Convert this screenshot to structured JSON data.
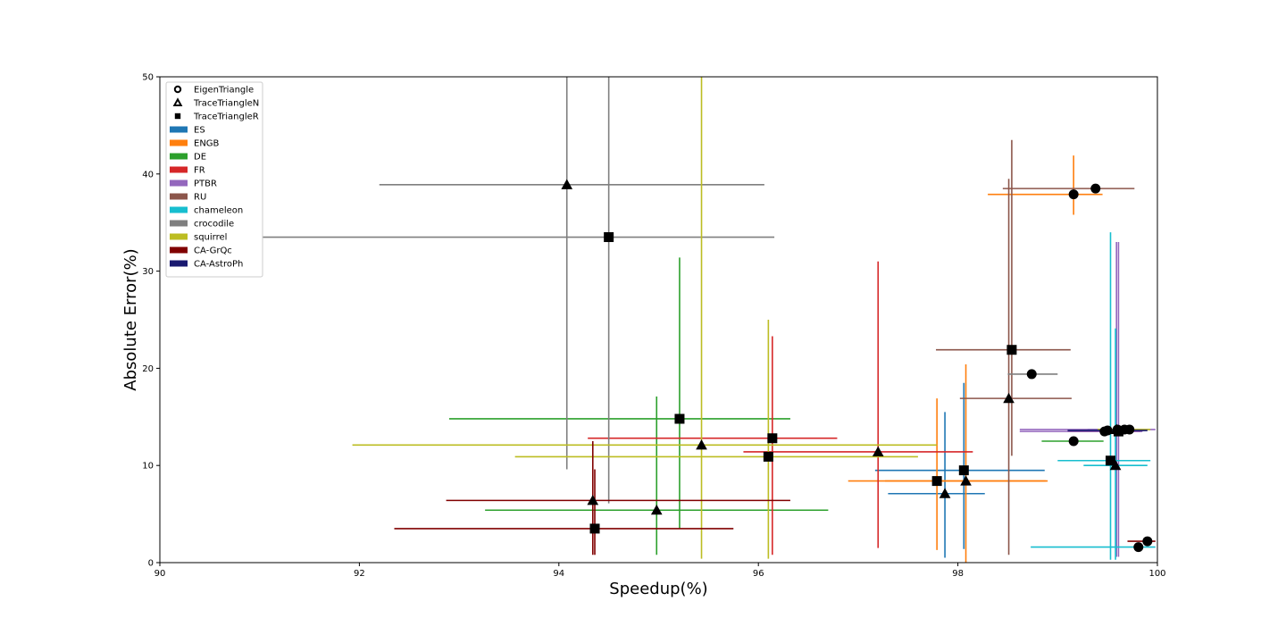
{
  "chart_data": {
    "type": "scatter",
    "xlabel": "Speedup(%)",
    "ylabel": "Absolute Error(%)",
    "xlim": [
      90,
      100
    ],
    "ylim": [
      0,
      50
    ],
    "xticks": [
      90,
      92,
      94,
      96,
      98,
      100
    ],
    "yticks": [
      0,
      10,
      20,
      30,
      40,
      50
    ],
    "grid": false,
    "legend_position": "top-left",
    "marker_legend": [
      {
        "label": "EigenTriangle",
        "marker": "circle"
      },
      {
        "label": "TraceTriangleN",
        "marker": "triangle"
      },
      {
        "label": "TraceTriangleR",
        "marker": "square"
      }
    ],
    "datasets": [
      {
        "name": "ES",
        "color": "#1f77b4"
      },
      {
        "name": "ENGB",
        "color": "#ff7f0e"
      },
      {
        "name": "DE",
        "color": "#2ca02c"
      },
      {
        "name": "FR",
        "color": "#d62728"
      },
      {
        "name": "PTBR",
        "color": "#9467bd"
      },
      {
        "name": "RU",
        "color": "#8c564b"
      },
      {
        "name": "chameleon",
        "color": "#17becf"
      },
      {
        "name": "crocodile",
        "color": "#7f7f7f"
      },
      {
        "name": "squirrel",
        "color": "#bcbd22"
      },
      {
        "name": "CA-GrQc",
        "color": "#800000"
      },
      {
        "name": "CA-AstroPh",
        "color": "#191970"
      }
    ],
    "points": [
      {
        "dataset": "ES",
        "method": "EigenTriangle",
        "x": 99.6,
        "y": 13.7,
        "xerr": [
          99.3,
          99.85
        ],
        "yerr": [
          13.4,
          14.0
        ]
      },
      {
        "dataset": "ES",
        "method": "TraceTriangleN",
        "x": 97.87,
        "y": 7.1,
        "xerr": [
          97.3,
          98.27
        ],
        "yerr": [
          0.5,
          15.5
        ]
      },
      {
        "dataset": "ES",
        "method": "TraceTriangleR",
        "x": 98.06,
        "y": 9.5,
        "xerr": [
          97.17,
          98.87
        ],
        "yerr": [
          1.4,
          18.5
        ]
      },
      {
        "dataset": "ENGB",
        "method": "EigenTriangle",
        "x": 99.16,
        "y": 37.9,
        "xerr": [
          98.3,
          99.45
        ],
        "yerr": [
          35.8,
          41.9
        ]
      },
      {
        "dataset": "ENGB",
        "method": "TraceTriangleN",
        "x": 98.08,
        "y": 8.4,
        "xerr": [
          97.27,
          98.88
        ],
        "yerr": [
          0.0,
          20.4
        ]
      },
      {
        "dataset": "ENGB",
        "method": "TraceTriangleR",
        "x": 97.79,
        "y": 8.4,
        "xerr": [
          96.9,
          98.9
        ],
        "yerr": [
          1.3,
          16.9
        ]
      },
      {
        "dataset": "DE",
        "method": "EigenTriangle",
        "x": 99.16,
        "y": 12.5,
        "xerr": [
          98.84,
          99.46
        ],
        "yerr": [
          12.3,
          12.7
        ]
      },
      {
        "dataset": "DE",
        "method": "TraceTriangleN",
        "x": 94.98,
        "y": 5.4,
        "xerr": [
          93.26,
          96.7
        ],
        "yerr": [
          0.8,
          17.1
        ]
      },
      {
        "dataset": "DE",
        "method": "TraceTriangleR",
        "x": 95.21,
        "y": 14.8,
        "xerr": [
          92.9,
          96.32
        ],
        "yerr": [
          3.5,
          31.4
        ]
      },
      {
        "dataset": "FR",
        "method": "EigenTriangle",
        "x": 99.47,
        "y": 13.5,
        "xerr": [
          99.1,
          99.83
        ],
        "yerr": [
          13.3,
          13.8
        ]
      },
      {
        "dataset": "FR",
        "method": "TraceTriangleN",
        "x": 97.2,
        "y": 11.4,
        "xerr": [
          95.85,
          98.15
        ],
        "yerr": [
          1.5,
          31.0
        ]
      },
      {
        "dataset": "FR",
        "method": "TraceTriangleR",
        "x": 96.14,
        "y": 12.8,
        "xerr": [
          94.29,
          96.79
        ],
        "yerr": [
          0.8,
          23.3
        ]
      },
      {
        "dataset": "PTBR",
        "method": "EigenTriangle",
        "x": 99.72,
        "y": 13.7,
        "xerr": [
          99.4,
          99.98
        ],
        "yerr": [
          13.5,
          14.0
        ]
      },
      {
        "dataset": "PTBR",
        "method": "TraceTriangleN",
        "x": 99.59,
        "y": 13.7,
        "xerr": [
          98.62,
          99.85
        ],
        "yerr": [
          0.6,
          33.0
        ]
      },
      {
        "dataset": "PTBR",
        "method": "TraceTriangleR",
        "x": 99.61,
        "y": 13.5,
        "xerr": [
          98.62,
          99.85
        ],
        "yerr": [
          0.6,
          33.0
        ]
      },
      {
        "dataset": "RU",
        "method": "EigenTriangle",
        "x": 99.38,
        "y": 38.5,
        "xerr": [
          98.45,
          99.77
        ],
        "yerr": [
          38.3,
          38.8
        ]
      },
      {
        "dataset": "RU",
        "method": "TraceTriangleN",
        "x": 98.51,
        "y": 16.9,
        "xerr": [
          98.02,
          99.14
        ],
        "yerr": [
          0.8,
          39.5
        ]
      },
      {
        "dataset": "RU",
        "method": "TraceTriangleR",
        "x": 98.54,
        "y": 21.9,
        "xerr": [
          97.78,
          99.13
        ],
        "yerr": [
          11.0,
          43.5
        ]
      },
      {
        "dataset": "chameleon",
        "method": "EigenTriangle",
        "x": 99.81,
        "y": 1.6,
        "xerr": [
          98.73,
          99.98
        ],
        "yerr": [
          1.4,
          1.8
        ]
      },
      {
        "dataset": "chameleon",
        "method": "TraceTriangleN",
        "x": 99.58,
        "y": 10.0,
        "xerr": [
          99.26,
          99.9
        ],
        "yerr": [
          0.3,
          24.1
        ]
      },
      {
        "dataset": "chameleon",
        "method": "TraceTriangleR",
        "x": 99.53,
        "y": 10.5,
        "xerr": [
          99.0,
          99.93
        ],
        "yerr": [
          0.3,
          34.0
        ]
      },
      {
        "dataset": "crocodile",
        "method": "EigenTriangle",
        "x": 98.74,
        "y": 19.4,
        "xerr": [
          98.5,
          99.0
        ],
        "yerr": [
          19.2,
          19.6
        ]
      },
      {
        "dataset": "crocodile",
        "method": "TraceTriangleN",
        "x": 94.08,
        "y": 38.9,
        "xerr": [
          92.2,
          96.06
        ],
        "yerr": [
          9.6,
          50.0
        ]
      },
      {
        "dataset": "crocodile",
        "method": "TraceTriangleR",
        "x": 94.5,
        "y": 33.5,
        "xerr": [
          90.8,
          96.16
        ],
        "yerr": [
          6.1,
          50.0
        ]
      },
      {
        "dataset": "squirrel",
        "method": "EigenTriangle",
        "x": 99.67,
        "y": 13.7,
        "xerr": [
          99.4,
          99.93
        ],
        "yerr": [
          13.5,
          13.9
        ]
      },
      {
        "dataset": "squirrel",
        "method": "TraceTriangleN",
        "x": 95.43,
        "y": 12.1,
        "xerr": [
          91.93,
          97.79
        ],
        "yerr": [
          0.4,
          50.0
        ]
      },
      {
        "dataset": "squirrel",
        "method": "TraceTriangleR",
        "x": 96.1,
        "y": 10.9,
        "xerr": [
          93.56,
          97.6
        ],
        "yerr": [
          0.4,
          25.0
        ]
      },
      {
        "dataset": "CA-GrQc",
        "method": "EigenTriangle",
        "x": 99.9,
        "y": 2.2,
        "xerr": [
          99.7,
          99.98
        ],
        "yerr": [
          2.0,
          2.4
        ]
      },
      {
        "dataset": "CA-GrQc",
        "method": "TraceTriangleN",
        "x": 94.34,
        "y": 6.4,
        "xerr": [
          92.87,
          96.32
        ],
        "yerr": [
          0.8,
          12.5
        ]
      },
      {
        "dataset": "CA-GrQc",
        "method": "TraceTriangleR",
        "x": 94.36,
        "y": 3.5,
        "xerr": [
          92.35,
          95.75
        ],
        "yerr": [
          0.8,
          9.6
        ]
      },
      {
        "dataset": "CA-AstroPh",
        "method": "EigenTriangle",
        "x": 99.5,
        "y": 13.6,
        "xerr": [
          99.1,
          99.9
        ],
        "yerr": [
          13.4,
          13.8
        ]
      }
    ]
  }
}
